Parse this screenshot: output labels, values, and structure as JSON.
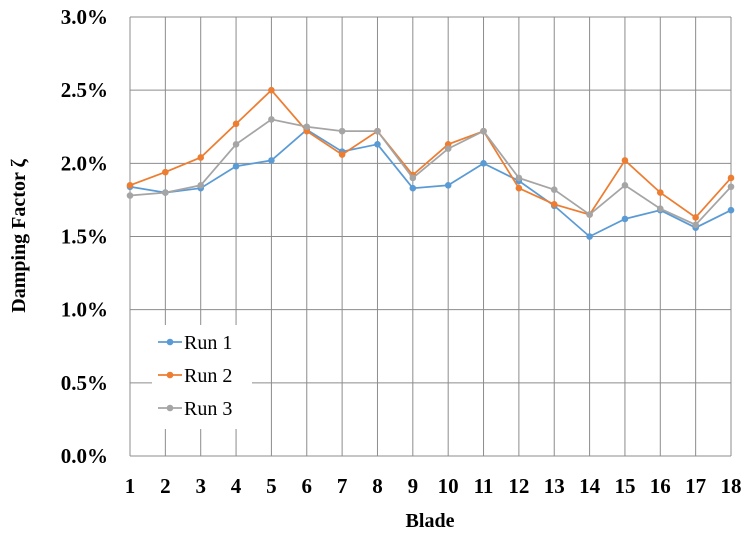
{
  "chart_data": {
    "type": "line",
    "xlabel": "Blade",
    "ylabel": "Damping Factor ζ",
    "x": [
      1,
      2,
      3,
      4,
      5,
      6,
      7,
      8,
      9,
      10,
      11,
      12,
      13,
      14,
      15,
      16,
      17,
      18
    ],
    "xlim": [
      1,
      18
    ],
    "ylim": [
      0.0,
      3.0
    ],
    "y_ticks": [
      "0.0%",
      "0.5%",
      "1.0%",
      "1.5%",
      "2.0%",
      "2.5%",
      "3.0%"
    ],
    "y_tick_values": [
      0.0,
      0.5,
      1.0,
      1.5,
      2.0,
      2.5,
      3.0
    ],
    "grid": true,
    "legend_position": "bottom-left",
    "series": [
      {
        "name": "Run 1",
        "color": "#5b9bd5",
        "values": [
          1.84,
          1.8,
          1.83,
          1.98,
          2.02,
          2.23,
          2.08,
          2.13,
          1.83,
          1.85,
          2.0,
          1.88,
          1.71,
          1.5,
          1.62,
          1.68,
          1.56,
          1.68
        ]
      },
      {
        "name": "Run 2",
        "color": "#ed7d31",
        "values": [
          1.85,
          1.94,
          2.04,
          2.27,
          2.5,
          2.22,
          2.06,
          2.22,
          1.92,
          2.13,
          2.22,
          1.83,
          1.72,
          1.65,
          2.02,
          1.8,
          1.63,
          1.9
        ]
      },
      {
        "name": "Run 3",
        "color": "#a5a5a5",
        "values": [
          1.78,
          1.8,
          1.85,
          2.13,
          2.3,
          2.25,
          2.22,
          2.22,
          1.9,
          2.1,
          2.22,
          1.9,
          1.82,
          1.65,
          1.85,
          1.69,
          1.58,
          1.84
        ]
      }
    ]
  }
}
